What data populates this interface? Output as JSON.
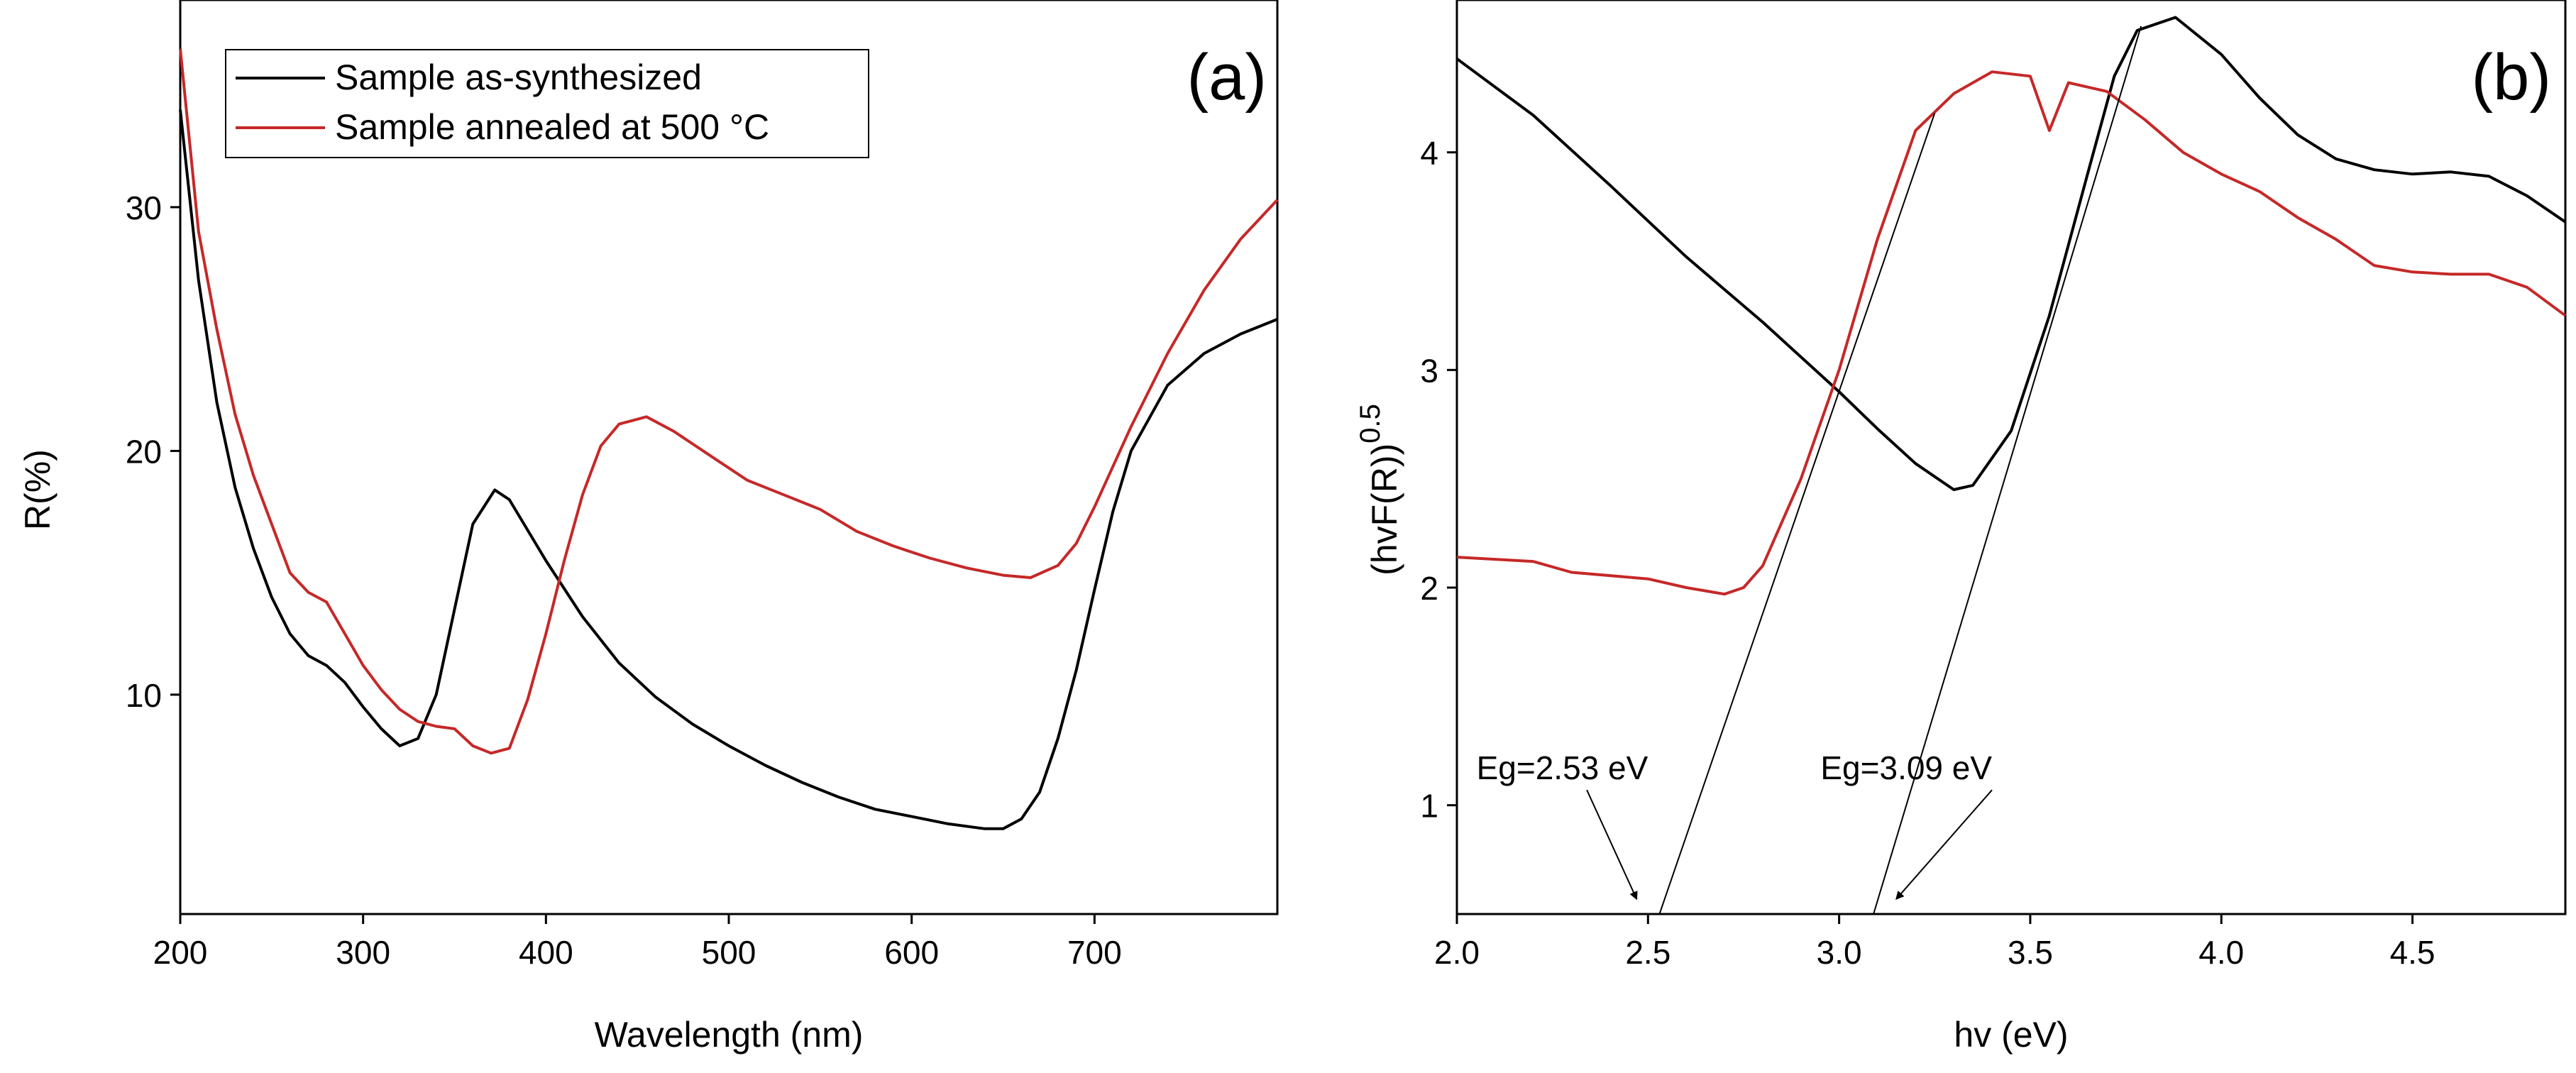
{
  "chart_data": [
    {
      "id": "a",
      "type": "line",
      "panel_label": "(a)",
      "xlabel": "Wavelength (nm)",
      "ylabel": "R(%)",
      "xlim": [
        200,
        800
      ],
      "ylim": [
        1,
        38.5
      ],
      "xticks": [
        200,
        300,
        400,
        500,
        600,
        700
      ],
      "yticks": [
        10,
        20,
        30
      ],
      "legend": {
        "position": "top-left",
        "entries": [
          {
            "label": "Sample as-synthesized",
            "color": "#000000"
          },
          {
            "label": "Sample annealed at 500 °C",
            "color": "#c62828"
          }
        ]
      },
      "series": [
        {
          "name": "Sample as-synthesized",
          "color": "#000000",
          "points": [
            [
              200,
              34
            ],
            [
              210,
              27
            ],
            [
              220,
              22
            ],
            [
              230,
              18.5
            ],
            [
              240,
              16
            ],
            [
              250,
              14
            ],
            [
              260,
              12.5
            ],
            [
              270,
              11.6
            ],
            [
              280,
              11.2
            ],
            [
              290,
              10.5
            ],
            [
              300,
              9.5
            ],
            [
              310,
              8.6
            ],
            [
              320,
              7.9
            ],
            [
              330,
              8.2
            ],
            [
              340,
              10
            ],
            [
              350,
              13.5
            ],
            [
              360,
              17
            ],
            [
              372,
              18.4
            ],
            [
              380,
              18
            ],
            [
              400,
              15.5
            ],
            [
              420,
              13.2
            ],
            [
              440,
              11.3
            ],
            [
              460,
              9.9
            ],
            [
              480,
              8.8
            ],
            [
              500,
              7.9
            ],
            [
              520,
              7.1
            ],
            [
              540,
              6.4
            ],
            [
              560,
              5.8
            ],
            [
              580,
              5.3
            ],
            [
              600,
              5
            ],
            [
              620,
              4.7
            ],
            [
              640,
              4.5
            ],
            [
              650,
              4.5
            ],
            [
              660,
              4.9
            ],
            [
              670,
              6
            ],
            [
              680,
              8.2
            ],
            [
              690,
              11
            ],
            [
              700,
              14.3
            ],
            [
              710,
              17.5
            ],
            [
              720,
              20
            ],
            [
              740,
              22.7
            ],
            [
              760,
              24
            ],
            [
              780,
              24.8
            ],
            [
              800,
              25.4
            ]
          ]
        },
        {
          "name": "Sample annealed at 500 °C",
          "color": "#c62828",
          "points": [
            [
              200,
              36.5
            ],
            [
              210,
              29
            ],
            [
              220,
              25
            ],
            [
              230,
              21.5
            ],
            [
              240,
              19
            ],
            [
              250,
              17
            ],
            [
              260,
              15
            ],
            [
              270,
              14.2
            ],
            [
              280,
              13.8
            ],
            [
              290,
              12.5
            ],
            [
              300,
              11.2
            ],
            [
              310,
              10.2
            ],
            [
              320,
              9.4
            ],
            [
              330,
              8.9
            ],
            [
              340,
              8.7
            ],
            [
              350,
              8.6
            ],
            [
              360,
              7.9
            ],
            [
              370,
              7.6
            ],
            [
              380,
              7.8
            ],
            [
              390,
              9.8
            ],
            [
              400,
              12.5
            ],
            [
              410,
              15.5
            ],
            [
              420,
              18.2
            ],
            [
              430,
              20.2
            ],
            [
              440,
              21.1
            ],
            [
              455,
              21.4
            ],
            [
              470,
              20.8
            ],
            [
              490,
              19.8
            ],
            [
              510,
              18.8
            ],
            [
              530,
              18.2
            ],
            [
              550,
              17.6
            ],
            [
              570,
              16.7
            ],
            [
              590,
              16.1
            ],
            [
              610,
              15.6
            ],
            [
              630,
              15.2
            ],
            [
              650,
              14.9
            ],
            [
              665,
              14.8
            ],
            [
              680,
              15.3
            ],
            [
              690,
              16.2
            ],
            [
              700,
              17.7
            ],
            [
              720,
              21
            ],
            [
              740,
              24
            ],
            [
              760,
              26.6
            ],
            [
              780,
              28.7
            ],
            [
              800,
              30.3
            ]
          ]
        }
      ]
    },
    {
      "id": "b",
      "type": "line",
      "panel_label": "(b)",
      "xlabel": "hv (eV)",
      "ylabel": "(hvF(R))",
      "ylabel_superscript": "0.5",
      "xlim": [
        2.0,
        4.9
      ],
      "ylim": [
        0.5,
        4.7
      ],
      "xticks": [
        2.0,
        2.5,
        3.0,
        3.5,
        4.0,
        4.5
      ],
      "xtick_labels": [
        "2.0",
        "2.5",
        "3.0",
        "3.5",
        "4.0",
        "4.5"
      ],
      "yticks": [
        1,
        2,
        3,
        4
      ],
      "series": [
        {
          "name": "Sample as-synthesized",
          "color": "#000000",
          "points": [
            [
              2.0,
              4.43
            ],
            [
              2.2,
              4.17
            ],
            [
              2.4,
              3.85
            ],
            [
              2.6,
              3.52
            ],
            [
              2.8,
              3.22
            ],
            [
              3.0,
              2.9
            ],
            [
              3.1,
              2.73
            ],
            [
              3.2,
              2.57
            ],
            [
              3.3,
              2.45
            ],
            [
              3.35,
              2.47
            ],
            [
              3.45,
              2.72
            ],
            [
              3.55,
              3.25
            ],
            [
              3.65,
              3.9
            ],
            [
              3.72,
              4.35
            ],
            [
              3.78,
              4.56
            ],
            [
              3.88,
              4.62
            ],
            [
              4.0,
              4.45
            ],
            [
              4.1,
              4.25
            ],
            [
              4.2,
              4.08
            ],
            [
              4.3,
              3.97
            ],
            [
              4.4,
              3.92
            ],
            [
              4.5,
              3.9
            ],
            [
              4.6,
              3.91
            ],
            [
              4.7,
              3.89
            ],
            [
              4.8,
              3.8
            ],
            [
              4.9,
              3.68
            ]
          ]
        },
        {
          "name": "Sample annealed at 500 °C",
          "color": "#c62828",
          "points": [
            [
              2.0,
              2.14
            ],
            [
              2.2,
              2.12
            ],
            [
              2.3,
              2.07
            ],
            [
              2.5,
              2.04
            ],
            [
              2.6,
              2.0
            ],
            [
              2.7,
              1.97
            ],
            [
              2.75,
              2.0
            ],
            [
              2.8,
              2.1
            ],
            [
              2.9,
              2.5
            ],
            [
              3.0,
              3.0
            ],
            [
              3.1,
              3.6
            ],
            [
              3.2,
              4.1
            ],
            [
              3.3,
              4.27
            ],
            [
              3.4,
              4.37
            ],
            [
              3.5,
              4.35
            ],
            [
              3.55,
              4.1
            ],
            [
              3.6,
              4.32
            ],
            [
              3.7,
              4.28
            ],
            [
              3.8,
              4.15
            ],
            [
              3.9,
              4.0
            ],
            [
              4.0,
              3.9
            ],
            [
              4.1,
              3.82
            ],
            [
              4.2,
              3.7
            ],
            [
              4.3,
              3.6
            ],
            [
              4.4,
              3.48
            ],
            [
              4.5,
              3.45
            ],
            [
              4.6,
              3.44
            ],
            [
              4.7,
              3.44
            ],
            [
              4.8,
              3.38
            ],
            [
              4.9,
              3.25
            ]
          ]
        }
      ],
      "tangent_lines": [
        {
          "from": [
            2.53,
            0.5
          ],
          "to": [
            3.25,
            4.18
          ]
        },
        {
          "from": [
            3.09,
            0.5
          ],
          "to": [
            3.79,
            4.58
          ]
        }
      ],
      "annotations": [
        {
          "text": "Eg=2.53 eV",
          "label_at": [
            2.5,
            1.12
          ],
          "arrow_from": [
            2.34,
            1.07
          ],
          "arrow_to": [
            2.47,
            0.57
          ]
        },
        {
          "text": "Eg=3.09 eV",
          "label_at": [
            3.4,
            1.12
          ],
          "arrow_from": [
            3.4,
            1.07
          ],
          "arrow_to": [
            3.15,
            0.57
          ]
        }
      ]
    }
  ]
}
